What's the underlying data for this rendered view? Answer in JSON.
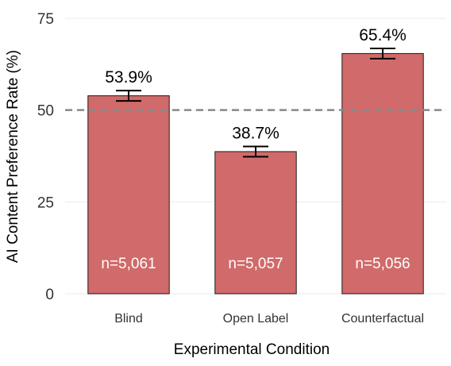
{
  "chart_data": {
    "type": "bar",
    "categories": [
      "Blind",
      "Open Label",
      "Counterfactual"
    ],
    "values": [
      53.9,
      38.7,
      65.4
    ],
    "error": [
      [
        52.5,
        55.3
      ],
      [
        37.3,
        40.1
      ],
      [
        64.0,
        66.8
      ]
    ],
    "value_labels": [
      "53.9%",
      "38.7%",
      "65.4%"
    ],
    "n_labels": [
      "n=5,061",
      "n=5,057",
      "n=5,056"
    ],
    "reference_line": 50,
    "xlabel": "Experimental Condition",
    "ylabel": "AI Content Preference Rate (%)",
    "ylim": [
      0,
      75
    ],
    "yticks": [
      0,
      25,
      50,
      75
    ],
    "grid": true,
    "colors": {
      "bar": "#d16a6a",
      "bar_outline": "#1a1a1a",
      "reference_line": "#888888",
      "grid": "#ebebeb"
    }
  }
}
